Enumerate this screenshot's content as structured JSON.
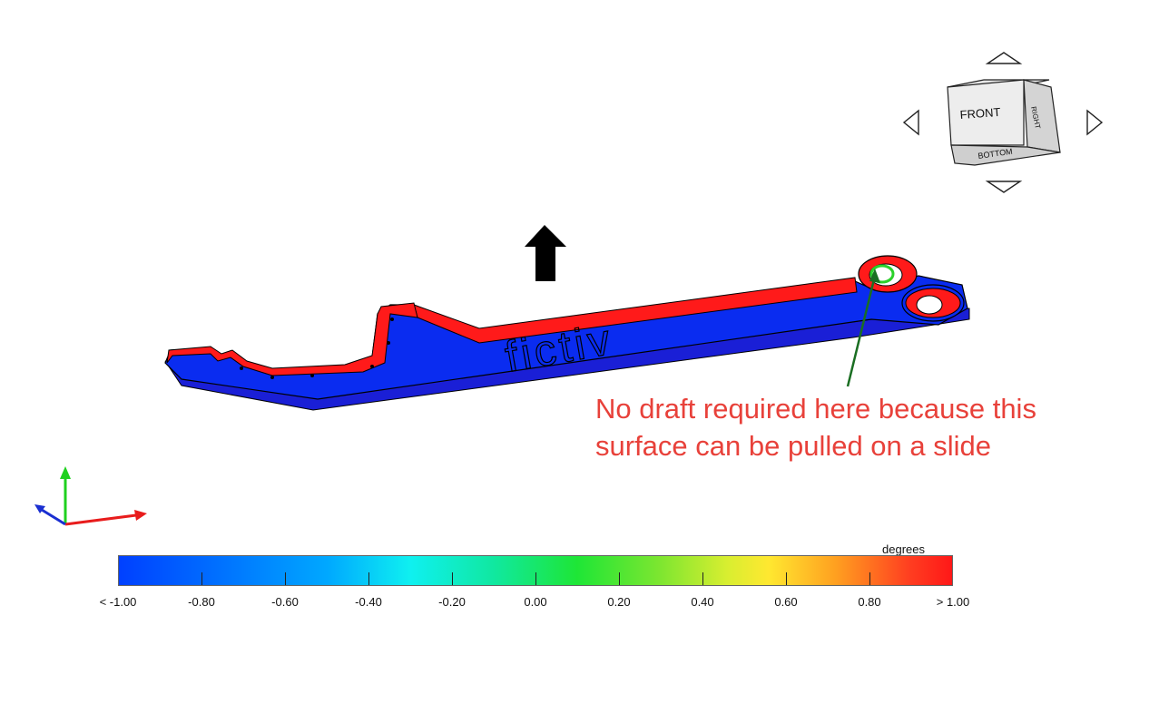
{
  "annotation": {
    "line1": "No draft required here because this",
    "line2": "surface can be pulled on a slide",
    "color": "#e8413a"
  },
  "model": {
    "emboss_text": "fictiv"
  },
  "view_cube": {
    "front": "FRONT",
    "right": "RIGHT",
    "bottom": "BOTTOM",
    "nav_icons": [
      "up-arrow-icon",
      "down-arrow-icon",
      "left-arrow-icon",
      "right-arrow-icon"
    ]
  },
  "colorbar": {
    "unit": "degrees",
    "min_color": "#0040ff",
    "max_color": "#ff1818",
    "tick_labels": [
      "< -1.00",
      "-0.80",
      "-0.60",
      "-0.40",
      "-0.20",
      "0.00",
      "0.20",
      "0.40",
      "0.60",
      "0.80",
      "> 1.00"
    ]
  },
  "axis_triad": {
    "colors": {
      "x": "#e81c1c",
      "y": "#1fd11f",
      "z": "#1a2fd1"
    }
  },
  "pull_direction": {
    "icon": "pull-direction-arrow-icon"
  }
}
